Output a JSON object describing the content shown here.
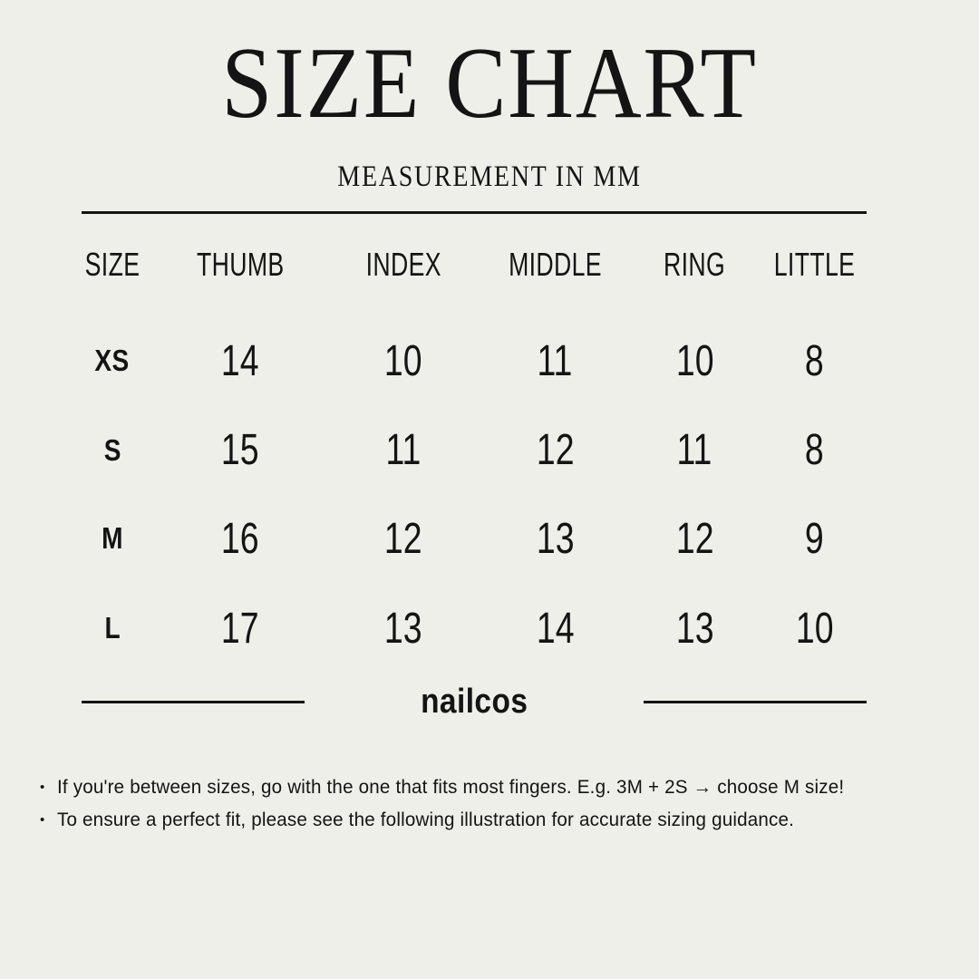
{
  "page": {
    "background": "#eeefe9",
    "text_color": "#141414"
  },
  "header": {
    "title": "SIZE CHART",
    "subtitle": "MEASUREMENT IN MM"
  },
  "chart_data": {
    "type": "table",
    "title": "SIZE CHART",
    "subtitle": "MEASUREMENT IN MM",
    "columns": [
      "SIZE",
      "THUMB",
      "INDEX",
      "MIDDLE",
      "RING",
      "LITTLE"
    ],
    "rows": [
      [
        "XS",
        14,
        10,
        11,
        10,
        8
      ],
      [
        "S",
        15,
        11,
        12,
        11,
        8
      ],
      [
        "M",
        16,
        12,
        13,
        12,
        9
      ],
      [
        "L",
        17,
        13,
        14,
        13,
        10
      ]
    ]
  },
  "brand": {
    "name": "nailcos"
  },
  "notes": {
    "bullet": "•",
    "items": [
      "If you're between sizes, go with the one that fits most fingers. E.g. 3M + 2S → choose M size!",
      "To ensure a perfect fit, please see the following illustration for accurate sizing guidance."
    ]
  }
}
